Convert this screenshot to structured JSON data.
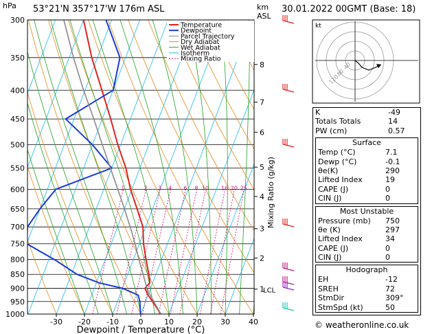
{
  "header": {
    "hpa": "hPa",
    "location": "53°21'N  357°17'W  176m  ASL",
    "km": "km",
    "asl": "ASL",
    "datetime": "30.01.2022  00GMT  (Base: 18)"
  },
  "chart_data": {
    "type": "line",
    "title": "53°21'N  357°17'W  176m  ASL",
    "xlabel": "Dewpoint / Temperature (°C)",
    "ylabel": "hPa",
    "ylabel_right": "Mixing Ratio (g/kg)",
    "x_ticks": [
      -30,
      -20,
      -10,
      0,
      10,
      20,
      30,
      40
    ],
    "pressure_levels": [
      300,
      350,
      400,
      450,
      500,
      550,
      600,
      650,
      700,
      750,
      800,
      850,
      900,
      950,
      1000
    ],
    "km_ticks": [
      {
        "label": "1",
        "p": 903
      },
      {
        "label": "2",
        "p": 795
      },
      {
        "label": "3",
        "p": 705
      },
      {
        "label": "4",
        "p": 618
      },
      {
        "label": "5",
        "p": 548
      },
      {
        "label": "6",
        "p": 475
      },
      {
        "label": "7",
        "p": 420
      },
      {
        "label": "8",
        "p": 360
      }
    ],
    "lcl": {
      "label": "LCL",
      "p": 905
    },
    "mixing_ratio_labels": [
      "1",
      "2",
      "3",
      "4",
      "6",
      "8",
      "10",
      "16",
      "20",
      "25"
    ],
    "legend": [
      "Temperature",
      "Dewpoint",
      "Parcel Trajectory",
      "Dry Adiabat",
      "Wet Adiabat",
      "Isotherm",
      "Mixing Ratio"
    ],
    "legend_placement": "top-right",
    "series": [
      {
        "name": "Temperature",
        "color": "#e02020",
        "points": [
          [
            1000,
            7.1
          ],
          [
            950,
            2.5
          ],
          [
            925,
            0
          ],
          [
            900,
            -2
          ],
          [
            880,
            -1
          ],
          [
            850,
            -2.5
          ],
          [
            800,
            -5.5
          ],
          [
            750,
            -8.5
          ],
          [
            700,
            -11
          ],
          [
            650,
            -15.5
          ],
          [
            600,
            -20.5
          ],
          [
            550,
            -25
          ],
          [
            500,
            -31
          ],
          [
            450,
            -37
          ],
          [
            400,
            -44
          ],
          [
            350,
            -52
          ],
          [
            300,
            -60
          ]
        ]
      },
      {
        "name": "Dewpoint",
        "color": "#1a3ad8",
        "points": [
          [
            1000,
            -0.1
          ],
          [
            950,
            -2
          ],
          [
            925,
            -3.5
          ],
          [
            900,
            -10
          ],
          [
            880,
            -19
          ],
          [
            850,
            -28
          ],
          [
            800,
            -38
          ],
          [
            750,
            -50
          ],
          [
            700,
            -52
          ],
          [
            650,
            -50
          ],
          [
            600,
            -47
          ],
          [
            550,
            -30
          ],
          [
            500,
            -40
          ],
          [
            450,
            -53
          ],
          [
            400,
            -40
          ],
          [
            350,
            -42
          ],
          [
            300,
            -52
          ]
        ]
      },
      {
        "name": "Parcel Trajectory",
        "color": "#888888",
        "points": [
          [
            1000,
            7.1
          ],
          [
            905,
            -1
          ],
          [
            850,
            -4.5
          ],
          [
            800,
            -8
          ],
          [
            750,
            -11.5
          ],
          [
            700,
            -15.5
          ],
          [
            650,
            -20
          ],
          [
            600,
            -25
          ],
          [
            550,
            -30.5
          ],
          [
            500,
            -36.5
          ],
          [
            450,
            -43
          ],
          [
            400,
            -50.5
          ],
          [
            350,
            -58.5
          ],
          [
            300,
            -67
          ]
        ]
      }
    ]
  },
  "hodograph": {
    "unit": "kt",
    "ring_labels": [
      "40",
      "80",
      "120"
    ]
  },
  "indices": [
    {
      "label": "K",
      "value": "-49"
    },
    {
      "label": "Totals Totals",
      "value": "14"
    },
    {
      "label": "PW (cm)",
      "value": "0.57"
    }
  ],
  "surface": {
    "title": "Surface",
    "rows": [
      {
        "label": "Temp (°C)",
        "value": "7.1"
      },
      {
        "label": "Dewp (°C)",
        "value": "-0.1"
      },
      {
        "label": "θe(K)",
        "value": "290"
      },
      {
        "label": "Lifted Index",
        "value": "19"
      },
      {
        "label": "CAPE (J)",
        "value": "0"
      },
      {
        "label": "CIN (J)",
        "value": "0"
      }
    ]
  },
  "most_unstable": {
    "title": "Most Unstable",
    "rows": [
      {
        "label": "Pressure (mb)",
        "value": "750"
      },
      {
        "label": "θe (K)",
        "value": "297"
      },
      {
        "label": "Lifted Index",
        "value": "34"
      },
      {
        "label": "CAPE (J)",
        "value": "0"
      },
      {
        "label": "CIN (J)",
        "value": "0"
      }
    ]
  },
  "hodograph_table": {
    "title": "Hodograph",
    "rows": [
      {
        "label": "EH",
        "value": "-12"
      },
      {
        "label": "SREH",
        "value": "72"
      },
      {
        "label": "StmDir",
        "value": "309°"
      },
      {
        "label": "StmSpd (kt)",
        "value": "50"
      }
    ]
  },
  "footer": "© weatheronline.co.uk"
}
